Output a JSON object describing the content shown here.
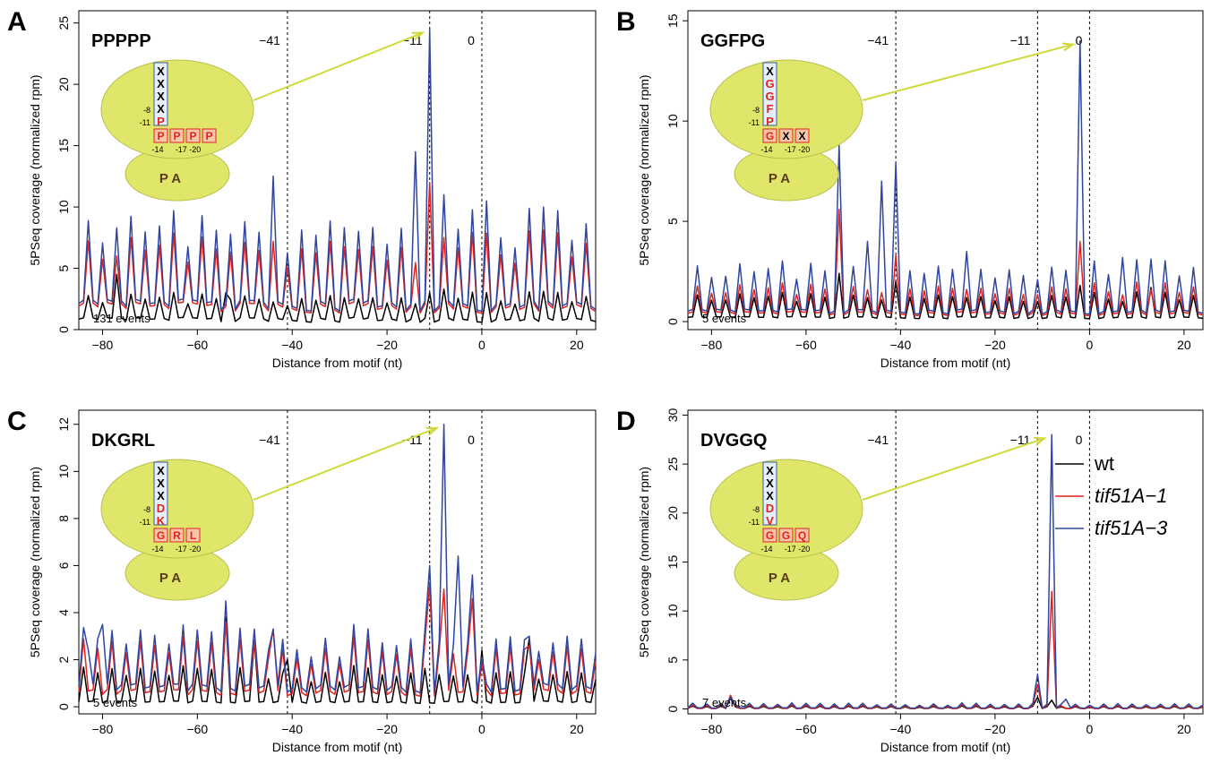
{
  "colors": {
    "wt": "#000000",
    "tif51A_1": "#e0231f",
    "tif51A_3": "#2e46a0",
    "ribosome": "#dfe66a",
    "arrow": "#cfd93a",
    "box_red": "#e0231f",
    "box_blue": "#3a5a9c"
  },
  "legend": {
    "entries": [
      "wt",
      "tif51A−1",
      "tif51A−3"
    ]
  },
  "chart_data": [
    {
      "type": "line",
      "panel_letter": "A",
      "motif": "PPPPP",
      "events_label": "131 events",
      "xlabel": "Distance from motif (nt)",
      "ylabel": "5PSeq coverage (normalized rpm)",
      "xlim": [
        -85,
        24
      ],
      "ylim": [
        0,
        26
      ],
      "xticks": [
        -80,
        -60,
        -40,
        -20,
        0,
        20
      ],
      "yticks": [
        0,
        5,
        10,
        15,
        20,
        25
      ],
      "xtick_labels": [
        "−80",
        "−60",
        "−40",
        "−20",
        "0",
        "20"
      ],
      "ytick_labels": [
        "0",
        "5",
        "10",
        "15",
        "20",
        "25"
      ],
      "vlines": [
        -41,
        -11,
        0
      ],
      "vline_labels": [
        "−41",
        "−11",
        "0"
      ],
      "inset": {
        "upper_letters": [
          "X",
          "X",
          "X",
          "X",
          "P"
        ],
        "row_letters": [
          "P",
          "P",
          "P",
          "P"
        ],
        "pos_labels": [
          "-8",
          "-11",
          "-14",
          "-17",
          "-20"
        ],
        "site_labels": "P A"
      },
      "series": [
        {
          "name": "wt",
          "peaks": [
            {
              "x": -77,
              "y": 4.5
            },
            {
              "x": -54,
              "y": 3
            },
            {
              "x": -11,
              "y": 3
            },
            {
              "x": -8,
              "y": 3.3
            }
          ],
          "spike_from": -85,
          "spike_to": 24,
          "spike_hi": 2.5,
          "spike_lo": 0.8,
          "period": 3,
          "phase": 1
        },
        {
          "name": "tif51A−1",
          "peaks": [
            {
              "x": -77,
              "y": 6
            },
            {
              "x": -44,
              "y": 7.2
            },
            {
              "x": -11,
              "y": 12
            },
            {
              "x": -8,
              "y": 7.5
            }
          ],
          "spike_from": -85,
          "spike_to": 24,
          "spike_hi": 6.5,
          "spike_lo": 1.8,
          "period": 3,
          "phase": 1
        },
        {
          "name": "tif51A−3",
          "peaks": [
            {
              "x": -77,
              "y": 8.3
            },
            {
              "x": -44,
              "y": 12.5
            },
            {
              "x": -14,
              "y": 14.5
            },
            {
              "x": -11,
              "y": 24.5
            },
            {
              "x": -8,
              "y": 11
            },
            {
              "x": 1,
              "y": 10.5
            }
          ],
          "spike_from": -85,
          "spike_to": 24,
          "spike_hi": 8,
          "spike_lo": 2,
          "period": 3,
          "phase": 1
        }
      ]
    },
    {
      "type": "line",
      "panel_letter": "B",
      "motif": "GGFPG",
      "events_label": "5 events",
      "xlabel": "Distance from motif (nt)",
      "ylabel": "5PSeq coverage (normalized rpm)",
      "xlim": [
        -85,
        24
      ],
      "ylim": [
        -0.4,
        15.5
      ],
      "xticks": [
        -80,
        -60,
        -40,
        -20,
        0,
        20
      ],
      "yticks": [
        0,
        5,
        10,
        15
      ],
      "xtick_labels": [
        "−80",
        "−60",
        "−40",
        "−20",
        "0",
        "20"
      ],
      "ytick_labels": [
        "0",
        "5",
        "10",
        "15"
      ],
      "vlines": [
        -41,
        -11,
        0
      ],
      "vline_labels": [
        "−41",
        "−11",
        "0"
      ],
      "inset": {
        "upper_letters": [
          "X",
          "G",
          "G",
          "F",
          "P"
        ],
        "row_letters": [
          "G",
          "X",
          "X"
        ],
        "pos_labels": [
          "-8",
          "-11",
          "-14",
          "-17",
          "-20"
        ],
        "site_labels": "P A"
      },
      "series": [
        {
          "name": "wt",
          "peaks": [
            {
              "x": -53,
              "y": 2.4
            },
            {
              "x": -41,
              "y": 2
            },
            {
              "x": -2,
              "y": 1.8
            },
            {
              "x": 13,
              "y": 1.7
            }
          ],
          "spike_from": -85,
          "spike_to": 24,
          "spike_hi": 1.2,
          "spike_lo": 0.2,
          "period": 3,
          "phase": 1
        },
        {
          "name": "tif51A−1",
          "peaks": [
            {
              "x": -53,
              "y": 5.6
            },
            {
              "x": -41,
              "y": 3.3
            },
            {
              "x": -2,
              "y": 4
            },
            {
              "x": 13,
              "y": 1.6
            }
          ],
          "spike_from": -85,
          "spike_to": 24,
          "spike_hi": 1.6,
          "spike_lo": 0.4,
          "period": 3,
          "phase": 1
        },
        {
          "name": "tif51A−3",
          "peaks": [
            {
              "x": -53,
              "y": 8.8
            },
            {
              "x": -47,
              "y": 4
            },
            {
              "x": -44,
              "y": 7
            },
            {
              "x": -41,
              "y": 7.9
            },
            {
              "x": -26,
              "y": 3.5
            },
            {
              "x": -14,
              "y": 2.3
            },
            {
              "x": -2,
              "y": 14
            },
            {
              "x": 7,
              "y": 3.2
            }
          ],
          "spike_from": -85,
          "spike_to": 24,
          "spike_hi": 2.5,
          "spike_lo": 0.5,
          "period": 3,
          "phase": 1
        }
      ]
    },
    {
      "type": "line",
      "panel_letter": "C",
      "motif": "DKGRL",
      "events_label": "5 events",
      "xlabel": "Distance from motif (nt)",
      "ylabel": "5PSeq coverage (normalized rpm)",
      "xlim": [
        -85,
        24
      ],
      "ylim": [
        -0.3,
        12.6
      ],
      "xticks": [
        -80,
        -60,
        -40,
        -20,
        0,
        20
      ],
      "yticks": [
        0,
        2,
        4,
        6,
        8,
        10,
        12
      ],
      "xtick_labels": [
        "−80",
        "−60",
        "−40",
        "−20",
        "0",
        "20"
      ],
      "ytick_labels": [
        "0",
        "2",
        "4",
        "6",
        "8",
        "10",
        "12"
      ],
      "vlines": [
        -41,
        -11,
        0
      ],
      "vline_labels": [
        "−41",
        "−11",
        "0"
      ],
      "inset": {
        "upper_letters": [
          "X",
          "X",
          "X",
          "D",
          "K"
        ],
        "row_letters": [
          "G",
          "R",
          "L"
        ],
        "pos_labels": [
          "-8",
          "-11",
          "-14",
          "-17",
          "-20"
        ],
        "site_labels": "P A"
      },
      "series": [
        {
          "name": "wt",
          "peaks": [
            {
              "x": -54,
              "y": 3.8
            },
            {
              "x": -48,
              "y": 2.8
            },
            {
              "x": -41,
              "y": 2
            },
            {
              "x": 0,
              "y": 2.4
            },
            {
              "x": 10,
              "y": 2.9
            }
          ],
          "spike_from": -85,
          "spike_to": 24,
          "spike_hi": 1.4,
          "spike_lo": 0.2,
          "period": 3,
          "phase": 0
        },
        {
          "name": "tif51A−1",
          "peaks": [
            {
              "x": -54,
              "y": 3.6
            },
            {
              "x": -44,
              "y": 3.3
            },
            {
              "x": -11,
              "y": 5.2
            },
            {
              "x": -8,
              "y": 5
            },
            {
              "x": -2,
              "y": 4.6
            },
            {
              "x": 10,
              "y": 2.6
            }
          ],
          "spike_from": -85,
          "spike_to": 24,
          "spike_hi": 2.4,
          "spike_lo": 0.6,
          "period": 3,
          "phase": 0
        },
        {
          "name": "tif51A−3",
          "peaks": [
            {
              "x": -83,
              "y": 2.4
            },
            {
              "x": -80,
              "y": 3.5
            },
            {
              "x": -54,
              "y": 4.5
            },
            {
              "x": -44,
              "y": 3.3
            },
            {
              "x": -11,
              "y": 6
            },
            {
              "x": -8,
              "y": 12
            },
            {
              "x": -5,
              "y": 6.4
            },
            {
              "x": -2,
              "y": 5.6
            },
            {
              "x": 10,
              "y": 3
            }
          ],
          "spike_from": -85,
          "spike_to": 24,
          "spike_hi": 2.8,
          "spike_lo": 0.8,
          "period": 3,
          "phase": 0
        }
      ]
    },
    {
      "type": "line",
      "panel_letter": "D",
      "motif": "DVGGQ",
      "events_label": "7 events",
      "xlabel": "Distance from motif (nt)",
      "ylabel": "5PSeq coverage (normalized rpm)",
      "xlim": [
        -85,
        24
      ],
      "ylim": [
        -0.5,
        30.5
      ],
      "xticks": [
        -80,
        -60,
        -40,
        -20,
        0,
        20
      ],
      "yticks": [
        0,
        5,
        10,
        15,
        20,
        25,
        30
      ],
      "xtick_labels": [
        "−80",
        "−60",
        "−40",
        "−20",
        "0",
        "20"
      ],
      "ytick_labels": [
        "0",
        "5",
        "10",
        "15",
        "20",
        "25",
        "30"
      ],
      "vlines": [
        -41,
        -11,
        0
      ],
      "vline_labels": [
        "−41",
        "−11",
        "0"
      ],
      "inset": {
        "upper_letters": [
          "X",
          "X",
          "X",
          "D",
          "V"
        ],
        "row_letters": [
          "G",
          "G",
          "Q"
        ],
        "pos_labels": [
          "-8",
          "-11",
          "-14",
          "-17",
          "-20"
        ],
        "site_labels": "P A"
      },
      "series": [
        {
          "name": "wt",
          "peaks": [
            {
              "x": -76,
              "y": 1.1
            },
            {
              "x": -11,
              "y": 1.2
            },
            {
              "x": -8,
              "y": 0.9
            }
          ],
          "spike_from": -85,
          "spike_to": 24,
          "spike_hi": 0.25,
          "spike_lo": 0.05,
          "period": 3,
          "phase": 0
        },
        {
          "name": "tif51A−1",
          "peaks": [
            {
              "x": -76,
              "y": 1.4
            },
            {
              "x": -11,
              "y": 2.5
            },
            {
              "x": -8,
              "y": 12
            }
          ],
          "spike_from": -85,
          "spike_to": 24,
          "spike_hi": 0.35,
          "spike_lo": 0.05,
          "period": 3,
          "phase": 0
        },
        {
          "name": "tif51A−3",
          "peaks": [
            {
              "x": -76,
              "y": 1.2
            },
            {
              "x": -11,
              "y": 3.5
            },
            {
              "x": -8,
              "y": 28
            },
            {
              "x": -5,
              "y": 1
            }
          ],
          "spike_from": -85,
          "spike_to": 24,
          "spike_hi": 0.5,
          "spike_lo": 0.1,
          "period": 3,
          "phase": 0
        }
      ]
    }
  ]
}
